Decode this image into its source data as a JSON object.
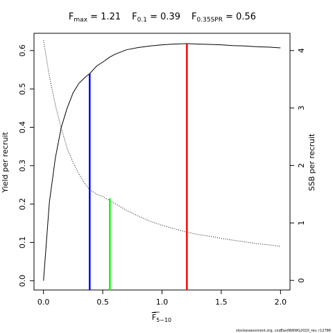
{
  "chart_data": {
    "type": "line",
    "title_parts": [
      {
        "base": "F",
        "sub": "max",
        "eq": " = 1.21"
      },
      {
        "base": "F",
        "sub": "0.1",
        "eq": " = 0.39"
      },
      {
        "base": "F",
        "sub": "0.35SPR",
        "eq": " = 0.56"
      }
    ],
    "xlabel": {
      "base": "F",
      "sub": "5−10"
    },
    "ylabel_left": "Yield per recruit",
    "ylabel_right": "SSB per recruit",
    "xlim": [
      -0.08,
      2.08
    ],
    "ylim_left": [
      -0.024,
      0.645
    ],
    "ylim_right": [
      -0.1667,
      4.3
    ],
    "x_ticks": [
      0,
      0.5,
      1,
      1.5,
      2
    ],
    "x_tick_labels": [
      "0.0",
      "0.5",
      "1.0",
      "1.5",
      "2.0"
    ],
    "y_left_ticks": [
      0,
      0.1,
      0.2,
      0.3,
      0.4,
      0.5,
      0.6
    ],
    "y_left_tick_labels": [
      "0.0",
      "0.1",
      "0.2",
      "0.3",
      "0.4",
      "0.5",
      "0.6"
    ],
    "y_right_ticks": [
      0,
      1,
      2,
      3,
      4
    ],
    "y_right_tick_labels": [
      "0",
      "1",
      "2",
      "3",
      "4"
    ],
    "series": [
      {
        "axis": "left",
        "style": "solid",
        "color": "#000000",
        "x": [
          0,
          0.05,
          0.1,
          0.15,
          0.2,
          0.25,
          0.3,
          0.35,
          0.39,
          0.45,
          0.5,
          0.56,
          0.6,
          0.7,
          0.8,
          0.9,
          1.0,
          1.1,
          1.21,
          1.3,
          1.4,
          1.5,
          1.6,
          1.7,
          1.8,
          1.9,
          2.0
        ],
        "values": [
          0,
          0.205,
          0.32,
          0.4,
          0.45,
          0.49,
          0.515,
          0.53,
          0.54,
          0.56,
          0.57,
          0.583,
          0.59,
          0.602,
          0.608,
          0.612,
          0.615,
          0.617,
          0.618,
          0.617,
          0.616,
          0.615,
          0.613,
          0.612,
          0.61,
          0.609,
          0.607
        ]
      },
      {
        "axis": "right",
        "style": "dotted",
        "color": "#000000",
        "x": [
          0,
          0.05,
          0.1,
          0.15,
          0.2,
          0.25,
          0.3,
          0.35,
          0.39,
          0.45,
          0.5,
          0.56,
          0.6,
          0.7,
          0.8,
          0.9,
          1.0,
          1.1,
          1.21,
          1.3,
          1.4,
          1.5,
          1.6,
          1.7,
          1.8,
          1.9,
          2.0
        ],
        "values": [
          4.18,
          3.55,
          3.05,
          2.65,
          2.3,
          2.05,
          1.85,
          1.68,
          1.58,
          1.5,
          1.46,
          1.39,
          1.34,
          1.22,
          1.12,
          1.03,
          0.96,
          0.9,
          0.84,
          0.8,
          0.77,
          0.73,
          0.7,
          0.67,
          0.64,
          0.62,
          0.59
        ]
      }
    ],
    "reference_lines": [
      {
        "name": "F0.1",
        "x": 0.39,
        "y": 0.54,
        "color": "#0000ff"
      },
      {
        "name": "F0.35SPR",
        "x": 0.56,
        "y": 0.215,
        "color": "#00ff00"
      },
      {
        "name": "Fmax",
        "x": 1.21,
        "y": 0.618,
        "color": "#ff0000"
      }
    ],
    "grid": false,
    "footer": "stockassessment.org, codEastNWWG2020_rev. r12786"
  }
}
